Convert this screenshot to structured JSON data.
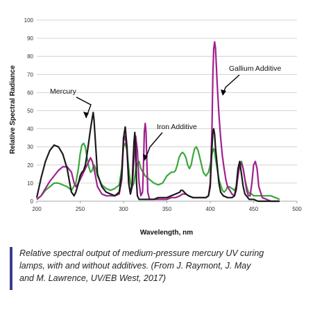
{
  "chart_data": {
    "type": "line",
    "title": "",
    "xlabel": "Wavelength, nm",
    "ylabel": "Relative Spectral Radiance",
    "xlim": [
      200,
      500
    ],
    "ylim": [
      0,
      100
    ],
    "x_ticks": [
      200,
      250,
      300,
      350,
      400,
      450,
      500
    ],
    "y_ticks": [
      0,
      10,
      20,
      30,
      40,
      50,
      60,
      70,
      80,
      90,
      100
    ],
    "grid": true,
    "legend": "none (series labeled by annotations with arrows)",
    "series": [
      {
        "name": "Mercury",
        "color": "#1a1a1a",
        "x": [
          200,
          205,
          210,
          215,
          220,
          225,
          230,
          235,
          238,
          240,
          243,
          245,
          248,
          250,
          252,
          254,
          256,
          258,
          260,
          262,
          264,
          265,
          266,
          268,
          270,
          275,
          280,
          285,
          290,
          295,
          298,
          300,
          302,
          304,
          306,
          308,
          310,
          312,
          313,
          314,
          315,
          316,
          318,
          320,
          322,
          325,
          330,
          335,
          340,
          345,
          350,
          355,
          360,
          365,
          366,
          368,
          370,
          372,
          375,
          380,
          385,
          390,
          395,
          398,
          400,
          402,
          403,
          404,
          405,
          406,
          408,
          410,
          412,
          415,
          420,
          425,
          428,
          430,
          432,
          434,
          436,
          438,
          440,
          445,
          450,
          455,
          460,
          465,
          470,
          475,
          480
        ],
        "y": [
          2,
          13,
          22,
          28,
          31,
          30,
          26,
          18,
          10,
          5,
          3,
          5,
          10,
          14,
          16,
          17,
          20,
          26,
          33,
          40,
          46,
          49,
          45,
          30,
          15,
          8,
          5,
          4,
          3,
          5,
          15,
          35,
          41,
          30,
          10,
          4,
          10,
          32,
          38,
          30,
          10,
          3,
          1,
          1,
          1,
          1,
          1,
          1,
          2,
          2,
          2,
          3,
          4,
          5,
          6,
          6,
          5,
          4,
          3,
          2,
          2,
          2,
          2,
          3,
          8,
          30,
          38,
          40,
          37,
          30,
          20,
          10,
          5,
          3,
          2,
          2,
          3,
          8,
          18,
          22,
          15,
          8,
          4,
          1,
          1,
          0,
          0,
          0,
          0,
          0,
          0
        ]
      },
      {
        "name": "Gallium Additive",
        "color": "#a0208f",
        "x": [
          200,
          205,
          210,
          215,
          220,
          225,
          230,
          235,
          240,
          243,
          245,
          248,
          250,
          252,
          254,
          256,
          258,
          260,
          262,
          264,
          266,
          268,
          270,
          275,
          280,
          285,
          290,
          295,
          298,
          300,
          302,
          304,
          306,
          308,
          310,
          312,
          314,
          316,
          318,
          320,
          322,
          323,
          324,
          325,
          326,
          327,
          328,
          330,
          335,
          340,
          345,
          350,
          355,
          360,
          365,
          368,
          370,
          372,
          375,
          380,
          385,
          390,
          395,
          398,
          400,
          402,
          403,
          404,
          405,
          406,
          407,
          408,
          410,
          412,
          414,
          416,
          418,
          420,
          425,
          428,
          430,
          432,
          434,
          436,
          438,
          440,
          442,
          444,
          446,
          448,
          450,
          452,
          454,
          456,
          460,
          465,
          470,
          475,
          480
        ],
        "y": [
          1,
          3,
          7,
          11,
          14,
          17,
          19,
          19,
          16,
          10,
          8,
          10,
          12,
          14,
          16,
          18,
          20,
          22,
          24,
          22,
          18,
          13,
          8,
          4,
          3,
          3,
          3,
          4,
          12,
          33,
          36,
          28,
          10,
          4,
          8,
          22,
          36,
          28,
          10,
          3,
          5,
          20,
          38,
          43,
          38,
          20,
          5,
          1,
          1,
          1,
          1,
          1,
          2,
          2,
          3,
          4,
          4,
          4,
          3,
          2,
          2,
          2,
          2,
          3,
          10,
          40,
          70,
          84,
          88,
          85,
          75,
          65,
          48,
          35,
          25,
          18,
          12,
          8,
          4,
          3,
          6,
          14,
          20,
          21,
          18,
          12,
          6,
          3,
          3,
          10,
          20,
          22,
          18,
          8,
          2,
          1,
          0,
          0,
          0
        ]
      },
      {
        "name": "Iron Additive",
        "color": "#3aa83a",
        "x": [
          200,
          205,
          210,
          215,
          220,
          225,
          230,
          235,
          240,
          245,
          248,
          250,
          252,
          254,
          256,
          258,
          260,
          262,
          264,
          265,
          266,
          268,
          270,
          272,
          275,
          280,
          285,
          290,
          295,
          298,
          300,
          302,
          304,
          306,
          308,
          310,
          312,
          315,
          318,
          320,
          325,
          330,
          335,
          340,
          345,
          350,
          355,
          358,
          360,
          362,
          364,
          366,
          368,
          370,
          372,
          374,
          376,
          378,
          380,
          382,
          384,
          386,
          388,
          390,
          392,
          395,
          398,
          400,
          402,
          404,
          405,
          406,
          408,
          410,
          412,
          414,
          416,
          418,
          420,
          422,
          425,
          428,
          430,
          432,
          434,
          436,
          438,
          440,
          442,
          444,
          446,
          448,
          450,
          455,
          460,
          465,
          470,
          475,
          480
        ],
        "y": [
          1,
          3,
          6,
          8,
          10,
          10,
          9,
          8,
          6,
          10,
          18,
          26,
          31,
          32,
          30,
          24,
          19,
          16,
          17,
          19,
          20,
          18,
          14,
          12,
          9,
          7,
          6,
          7,
          9,
          18,
          30,
          32,
          28,
          18,
          10,
          8,
          10,
          20,
          22,
          18,
          14,
          12,
          10,
          9,
          10,
          14,
          16,
          16,
          17,
          20,
          24,
          26,
          27,
          26,
          24,
          20,
          18,
          20,
          25,
          29,
          30,
          28,
          24,
          20,
          16,
          14,
          16,
          20,
          26,
          29,
          28,
          24,
          18,
          12,
          9,
          6,
          5,
          6,
          8,
          8,
          7,
          6,
          8,
          14,
          20,
          22,
          18,
          12,
          8,
          5,
          4,
          4,
          3,
          3,
          3,
          3,
          3,
          2,
          1
        ]
      }
    ],
    "annotations": [
      {
        "text": "Mercury",
        "series": "Mercury"
      },
      {
        "text": "Gallium Additive",
        "series": "Gallium Additive"
      },
      {
        "text": "Iron Additive",
        "series": "Iron Additive"
      }
    ]
  },
  "caption": {
    "line1": "Relative spectral output of medium-pressure mercury UV curing",
    "line2": "lamps, with and without additives. (From J. Raymont, J. May",
    "line3": "and M. Lawrence, UV/EB West, 2017)"
  }
}
